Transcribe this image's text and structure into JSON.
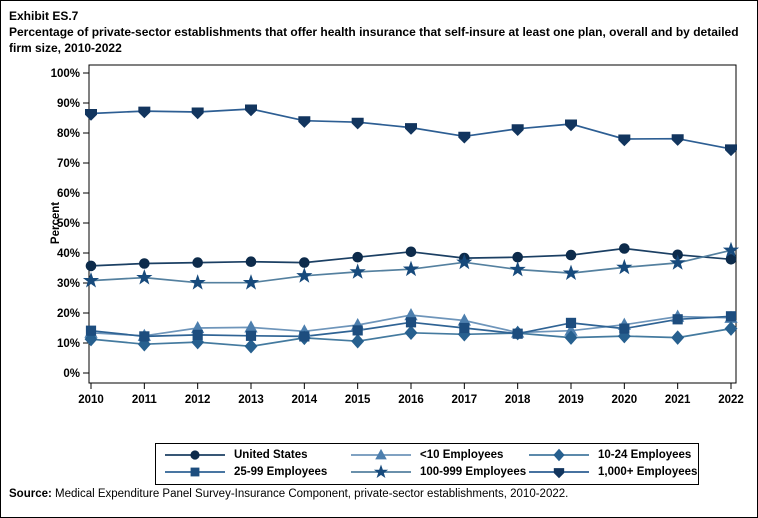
{
  "header": {
    "exhibit_label": "Exhibit ES.7",
    "title": "Percentage of private-sector establishments that offer health insurance that self-insure at least one plan, overall and by detailed firm size, 2010-2022"
  },
  "chart_data": {
    "type": "line",
    "title": "Percentage of private-sector establishments that offer health insurance that self-insure at least one plan, overall and by detailed firm size, 2010-2022",
    "xlabel": "",
    "ylabel": "Percent",
    "ylim": [
      0,
      100
    ],
    "ytick_step": 10,
    "ytick_suffix": "%",
    "grid": false,
    "legend_position": "bottom-box",
    "x": [
      2010,
      2011,
      2012,
      2013,
      2014,
      2015,
      2016,
      2017,
      2018,
      2019,
      2020,
      2021,
      2022
    ],
    "series": [
      {
        "name": "United States",
        "marker": "circle",
        "marker_color": "#0d2b4b",
        "line_color": "#1b3f63",
        "values": [
          35.7,
          36.5,
          36.8,
          37.1,
          36.8,
          38.6,
          40.4,
          38.3,
          38.6,
          39.3,
          41.5,
          39.4,
          37.9
        ]
      },
      {
        "name": "<10 Employees",
        "marker": "triangle",
        "marker_color": "#4d7fae",
        "line_color": "#6e95ba",
        "values": [
          13.4,
          12.4,
          15.0,
          15.2,
          13.9,
          16.0,
          19.3,
          17.5,
          13.5,
          14.1,
          16.1,
          18.8,
          18.4
        ]
      },
      {
        "name": "10-24 Employees",
        "marker": "diamond",
        "marker_color": "#27608f",
        "line_color": "#447a9f",
        "values": [
          11.3,
          9.6,
          10.3,
          8.9,
          11.7,
          10.6,
          13.4,
          12.9,
          13.3,
          11.8,
          12.3,
          11.8,
          14.8
        ]
      },
      {
        "name": "25-99 Employees",
        "marker": "square",
        "marker_color": "#1d4d7e",
        "line_color": "#2f6394",
        "values": [
          14.1,
          12.2,
          12.7,
          12.4,
          12.2,
          14.2,
          16.9,
          15.0,
          13.1,
          16.7,
          14.8,
          17.9,
          18.9
        ]
      },
      {
        "name": "100-999 Employees",
        "marker": "star",
        "marker_color": "#174a7c",
        "line_color": "#54809f",
        "values": [
          30.8,
          31.8,
          30.1,
          30.1,
          32.4,
          33.7,
          34.6,
          36.9,
          34.5,
          33.3,
          35.2,
          36.7,
          40.9
        ]
      },
      {
        "name": "1,000+ Employees",
        "marker": "pentagon-down",
        "marker_color": "#12355e",
        "line_color": "#2d5e93",
        "values": [
          86.5,
          87.3,
          87.0,
          88.0,
          84.1,
          83.6,
          81.8,
          78.9,
          81.4,
          83.0,
          78.0,
          78.1,
          74.7
        ]
      }
    ]
  },
  "footer": {
    "source_label": "Source:",
    "source_text": " Medical Expenditure Panel Survey-Insurance Component, private-sector establishments, 2010-2022."
  }
}
